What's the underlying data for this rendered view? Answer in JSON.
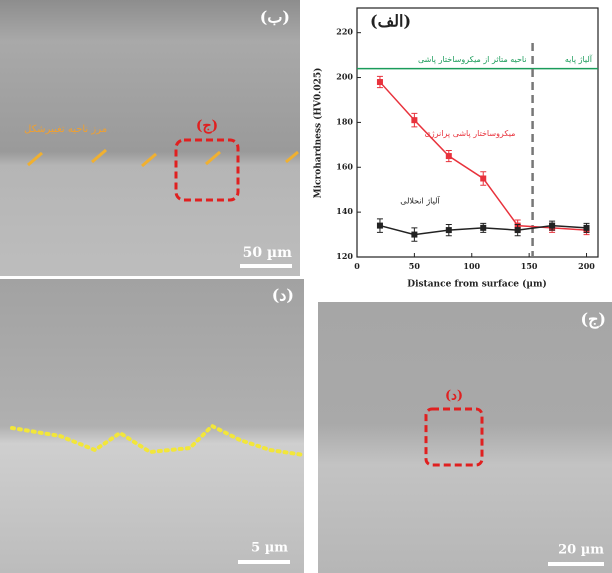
{
  "panels": {
    "top_left": {
      "label": "(ب)",
      "box_label": "(ج)",
      "boundary_label": "مرز ناحیه تغییرشکل",
      "scale": "50 µm"
    },
    "bottom_left": {
      "label": "(د)",
      "scale": "5 µm"
    },
    "bottom_right": {
      "label": "(ج)",
      "box_label": "(د)",
      "scale": "20 µm"
    }
  },
  "chart_data": {
    "type": "line",
    "title": "(الف)",
    "xlabel": "Distance from surface (µm)",
    "ylabel": "Microhardness (HV0.025)",
    "x": [
      20,
      50,
      80,
      110,
      140,
      170,
      200
    ],
    "series": [
      {
        "name": "میکروساختار پاشی پرانرژی",
        "color": "#e8323c",
        "values": [
          198,
          181,
          165,
          155,
          134,
          133,
          132
        ],
        "errors": [
          2.5,
          3,
          2.5,
          3,
          2.5,
          2,
          2
        ]
      },
      {
        "name": "آلیاژ انحلالی",
        "color": "#222222",
        "values": [
          134,
          130,
          132,
          133,
          132,
          134,
          133
        ],
        "errors": [
          3,
          3,
          2.5,
          2,
          2.5,
          2,
          2
        ]
      }
    ],
    "xlim": [
      0,
      210
    ],
    "ylim": [
      120,
      231
    ],
    "xticks": [
      0,
      50,
      100,
      150,
      200
    ],
    "yticks": [
      120,
      140,
      160,
      180,
      200,
      220
    ],
    "zone_line": {
      "y": 204,
      "color": "#1a9c5a",
      "left_label": "ناحیه متاثر از میکروساختار پاشی",
      "right_label": "آلیاژ پایه"
    },
    "boundary": {
      "x": 153
    }
  }
}
